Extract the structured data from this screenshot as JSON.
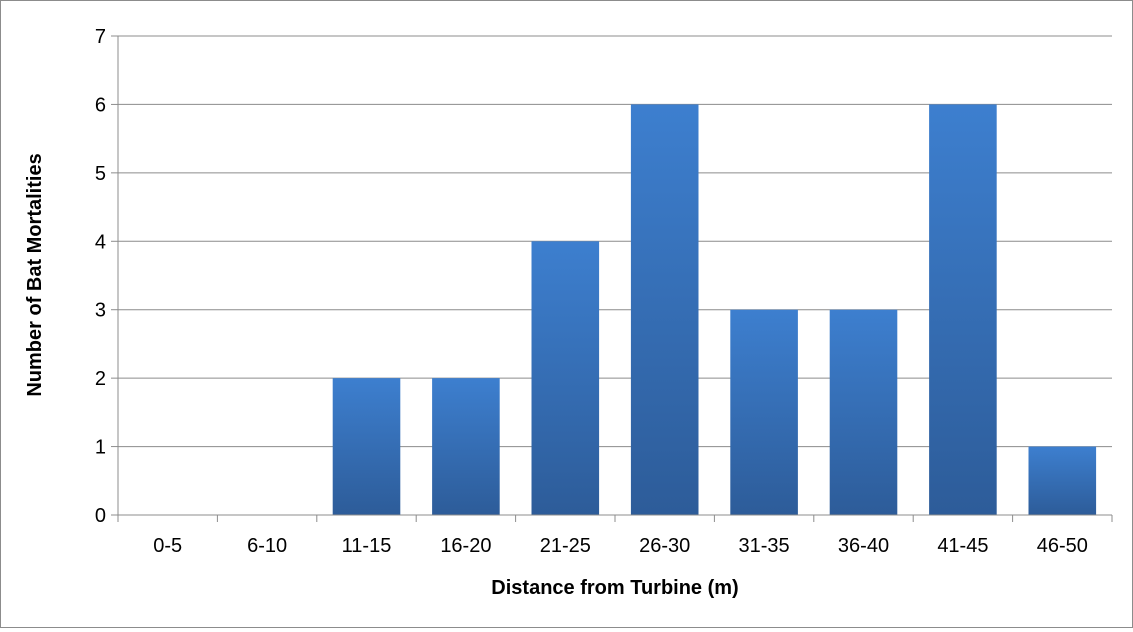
{
  "chart_data": {
    "type": "bar",
    "title": "",
    "xlabel": "Distance from Turbine (m)",
    "ylabel": "Number of Bat Mortalities",
    "categories": [
      "0-5",
      "6-10",
      "11-15",
      "16-20",
      "21-25",
      "26-30",
      "31-35",
      "36-40",
      "41-45",
      "46-50"
    ],
    "values": [
      0,
      0,
      2,
      2,
      4,
      6,
      3,
      3,
      6,
      1
    ],
    "ylim": [
      0,
      7
    ],
    "yticks": [
      "0",
      "1",
      "2",
      "3",
      "4",
      "5",
      "6",
      "7"
    ],
    "grid": true,
    "legend": "none",
    "bar_color_top": "#3d7fcf",
    "bar_color_bottom": "#2d5c99"
  }
}
